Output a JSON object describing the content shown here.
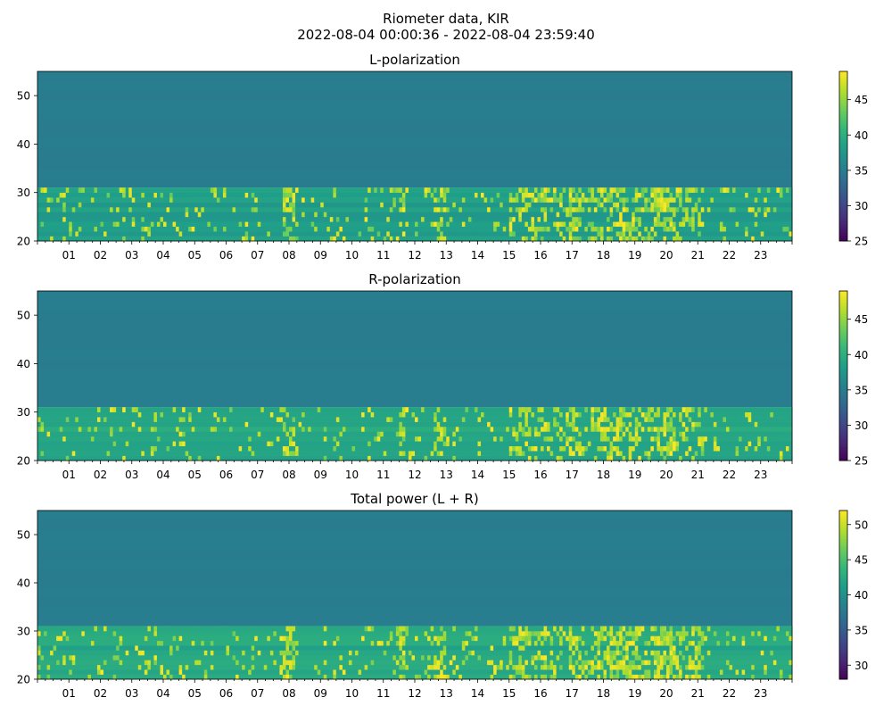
{
  "figure": {
    "title_line1": "Riometer data, KIR",
    "title_line2": "2022-08-04 00:00:36 - 2022-08-04 23:59:40"
  },
  "chart_data": [
    {
      "type": "heatmap",
      "title": "L-polarization",
      "xlabel": "",
      "ylabel": "",
      "xlim": [
        0,
        24
      ],
      "ylim": [
        20,
        55
      ],
      "x_tick_labels": [
        "01",
        "02",
        "03",
        "04",
        "05",
        "06",
        "07",
        "08",
        "09",
        "10",
        "11",
        "12",
        "13",
        "14",
        "15",
        "16",
        "17",
        "18",
        "19",
        "20",
        "21",
        "22",
        "23"
      ],
      "y_ticks": [
        20,
        30,
        40,
        50
      ],
      "colorbar": {
        "range": [
          25,
          49
        ],
        "ticks": [
          25,
          30,
          35,
          40,
          45
        ],
        "colormap": "viridis"
      },
      "data_summary": {
        "rows_31_to_55_value": 35,
        "rows_20_to_31_value_range": [
          36,
          49
        ],
        "active_hours": [
          8,
          11.6,
          12.8,
          15.5,
          16.2,
          17,
          18,
          19,
          20,
          21
        ]
      }
    },
    {
      "type": "heatmap",
      "title": "R-polarization",
      "xlabel": "",
      "ylabel": "",
      "xlim": [
        0,
        24
      ],
      "ylim": [
        20,
        55
      ],
      "x_tick_labels": [
        "01",
        "02",
        "03",
        "04",
        "05",
        "06",
        "07",
        "08",
        "09",
        "10",
        "11",
        "12",
        "13",
        "14",
        "15",
        "16",
        "17",
        "18",
        "19",
        "20",
        "21",
        "22",
        "23"
      ],
      "y_ticks": [
        20,
        30,
        40,
        50
      ],
      "colorbar": {
        "range": [
          25,
          49
        ],
        "ticks": [
          25,
          30,
          35,
          40,
          45
        ],
        "colormap": "viridis"
      },
      "data_summary": {
        "rows_31_to_55_value": 35,
        "rows_20_to_31_value_range": [
          37,
          49
        ],
        "active_hours": [
          8,
          11.6,
          12.8,
          15.5,
          16.2,
          17,
          18,
          19,
          20,
          21
        ]
      }
    },
    {
      "type": "heatmap",
      "title": "Total power (L + R)",
      "xlabel": "",
      "ylabel": "",
      "xlim": [
        0,
        24
      ],
      "ylim": [
        20,
        55
      ],
      "x_tick_labels": [
        "01",
        "02",
        "03",
        "04",
        "05",
        "06",
        "07",
        "08",
        "09",
        "10",
        "11",
        "12",
        "13",
        "14",
        "15",
        "16",
        "17",
        "18",
        "19",
        "20",
        "21",
        "22",
        "23"
      ],
      "y_ticks": [
        20,
        30,
        40,
        50
      ],
      "colorbar": {
        "range": [
          28,
          52
        ],
        "ticks": [
          30,
          35,
          40,
          45,
          50
        ],
        "colormap": "viridis"
      },
      "data_summary": {
        "rows_31_to_55_value": 38,
        "rows_20_to_31_value_range": [
          40,
          52
        ],
        "active_hours": [
          8,
          11.6,
          12.8,
          15.5,
          16.2,
          17,
          18,
          19,
          20,
          21
        ]
      }
    }
  ]
}
